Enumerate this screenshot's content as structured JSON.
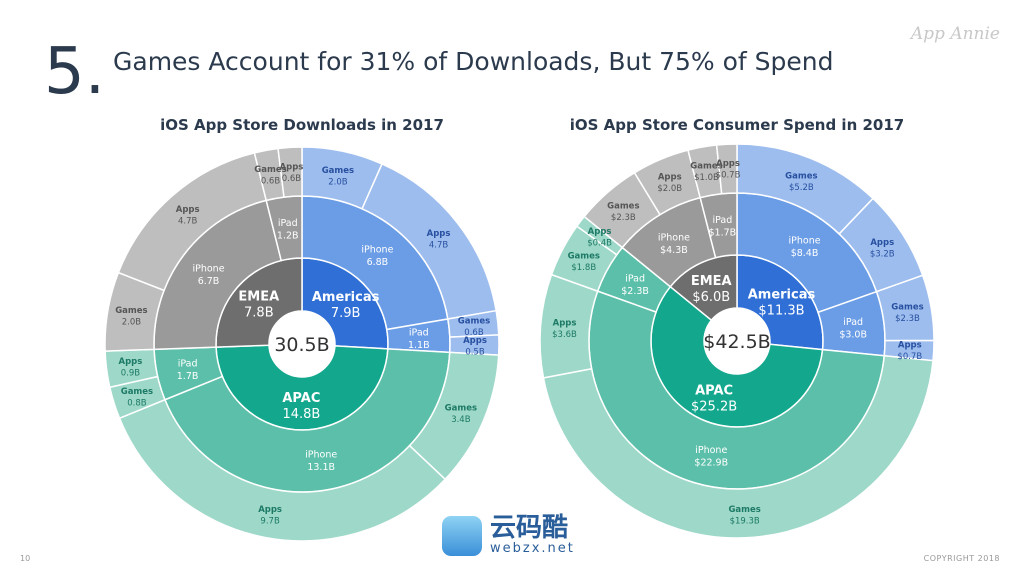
{
  "slide": {
    "number": "5.",
    "title": "Games Account for 31% of Downloads, But 75% of Spend",
    "logo": "App Annie",
    "page": "10",
    "copyright": "COPYRIGHT 2018"
  },
  "watermark": {
    "big": "云码酷",
    "small": "webzx.net"
  },
  "colors": {
    "Americas": [
      "#2f6fd6",
      "#6b9de6",
      "#9dbdee",
      "#2850a0"
    ],
    "APAC": [
      "#13a88d",
      "#5cbfa9",
      "#9dd8c8",
      "#1d7a66"
    ],
    "EMEA": [
      "#6e6e6e",
      "#9a9a9a",
      "#bebebe",
      "#555555"
    ]
  },
  "chart_data": [
    {
      "type": "sunburst",
      "title": "iOS App Store Downloads in 2017",
      "total": "30.5B",
      "unit": "B",
      "prefix": "",
      "regions": [
        {
          "name": "Americas",
          "value": 7.9,
          "devices": [
            {
              "name": "iPhone",
              "value": 6.8,
              "cats": [
                {
                  "name": "Games",
                  "value": 2.0
                },
                {
                  "name": "Apps",
                  "value": 4.7
                }
              ]
            },
            {
              "name": "iPad",
              "value": 1.1,
              "cats": [
                {
                  "name": "Games",
                  "value": 0.6
                },
                {
                  "name": "Apps",
                  "value": 0.5
                }
              ]
            }
          ]
        },
        {
          "name": "APAC",
          "value": 14.8,
          "devices": [
            {
              "name": "iPhone",
              "value": 13.1,
              "cats": [
                {
                  "name": "Games",
                  "value": 3.4
                },
                {
                  "name": "Apps",
                  "value": 9.7
                }
              ]
            },
            {
              "name": "iPad",
              "value": 1.7,
              "cats": [
                {
                  "name": "Games",
                  "value": 0.8
                },
                {
                  "name": "Apps",
                  "value": 0.9
                }
              ]
            }
          ]
        },
        {
          "name": "EMEA",
          "value": 7.8,
          "devices": [
            {
              "name": "iPhone",
              "value": 6.7,
              "cats": [
                {
                  "name": "Games",
                  "value": 2.0
                },
                {
                  "name": "Apps",
                  "value": 4.7
                }
              ]
            },
            {
              "name": "iPad",
              "value": 1.2,
              "cats": [
                {
                  "name": "Games",
                  "value": 0.6
                },
                {
                  "name": "Apps",
                  "value": 0.6
                }
              ]
            }
          ]
        }
      ]
    },
    {
      "type": "sunburst",
      "title": "iOS App Store Consumer Spend in 2017",
      "total": "$42.5B",
      "unit": "B",
      "prefix": "$",
      "regions": [
        {
          "name": "Americas",
          "value": 11.3,
          "devices": [
            {
              "name": "iPhone",
              "value": 8.4,
              "cats": [
                {
                  "name": "Games",
                  "value": 5.2
                },
                {
                  "name": "Apps",
                  "value": 3.2
                }
              ]
            },
            {
              "name": "iPad",
              "value": 3.0,
              "cats": [
                {
                  "name": "Games",
                  "value": 2.3
                },
                {
                  "name": "Apps",
                  "value": 0.7
                }
              ]
            }
          ]
        },
        {
          "name": "APAC",
          "value": 25.2,
          "devices": [
            {
              "name": "iPhone",
              "value": 22.9,
              "cats": [
                {
                  "name": "Games",
                  "value": 19.3
                },
                {
                  "name": "Apps",
                  "value": 3.6
                }
              ]
            },
            {
              "name": "iPad",
              "value": 2.3,
              "cats": [
                {
                  "name": "Games",
                  "value": 1.8
                },
                {
                  "name": "Apps",
                  "value": 0.4
                }
              ]
            }
          ]
        },
        {
          "name": "EMEA",
          "value": 6.0,
          "devices": [
            {
              "name": "iPhone",
              "value": 4.3,
              "cats": [
                {
                  "name": "Games",
                  "value": 2.3
                },
                {
                  "name": "Apps",
                  "value": 2.0
                }
              ]
            },
            {
              "name": "iPad",
              "value": 1.7,
              "cats": [
                {
                  "name": "Games",
                  "value": 1.0
                },
                {
                  "name": "Apps",
                  "value": 0.7
                }
              ]
            }
          ]
        }
      ]
    }
  ]
}
